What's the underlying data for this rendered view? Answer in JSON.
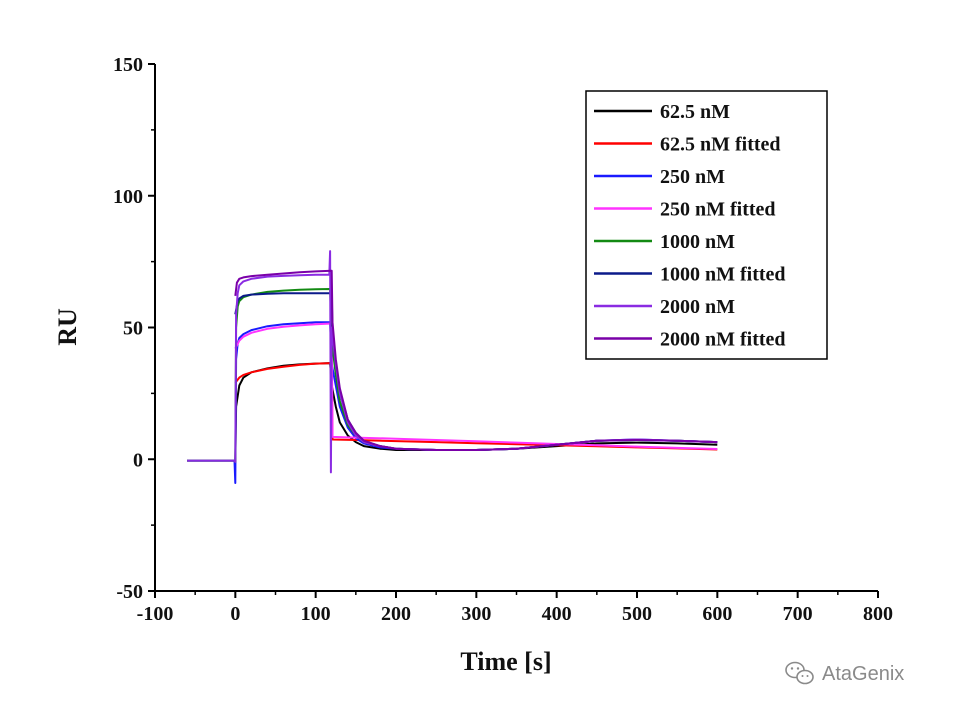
{
  "watermark": {
    "text": "AtaGenix",
    "icon": "wechat-icon",
    "color": "#8a8a8a"
  },
  "chart_data": {
    "type": "line",
    "title": "",
    "xlabel": "Time [s]",
    "ylabel": "RU",
    "xlim": [
      -100,
      800
    ],
    "ylim": [
      -50,
      150
    ],
    "x_ticks": [
      -100,
      0,
      100,
      200,
      300,
      400,
      500,
      600,
      700,
      800
    ],
    "y_ticks": [
      -50,
      0,
      50,
      100,
      150
    ],
    "grid": false,
    "legend_position": "top-right",
    "series": [
      {
        "name": "62.5 nM",
        "color": "#000000",
        "x": [
          -60,
          -1,
          0,
          1,
          5,
          10,
          20,
          40,
          60,
          80,
          100,
          118,
          120,
          125,
          130,
          140,
          150,
          160,
          180,
          200,
          250,
          300,
          350,
          400,
          450,
          500,
          550,
          600
        ],
        "y": [
          -0.5,
          -0.5,
          -1,
          20,
          28,
          31,
          33,
          34.5,
          35.5,
          36,
          36.3,
          36.5,
          28,
          20,
          14,
          9,
          6.5,
          5,
          4,
          3.5,
          3.5,
          3.5,
          4,
          5,
          6,
          6.3,
          6,
          5.5
        ]
      },
      {
        "name": "62.5 nM fitted",
        "color": "#ff0000",
        "x": [
          0,
          5,
          10,
          20,
          40,
          60,
          80,
          100,
          120,
          121,
          150,
          200,
          250,
          300,
          350,
          400,
          450,
          500,
          550,
          600
        ],
        "y": [
          29,
          31,
          32,
          33,
          34.3,
          35.1,
          35.8,
          36.3,
          36.5,
          7.5,
          7.3,
          6.9,
          6.5,
          6.1,
          5.7,
          5.3,
          4.9,
          4.5,
          4.1,
          3.7
        ]
      },
      {
        "name": "250 nM",
        "color": "#1a1aff",
        "x": [
          -60,
          -1,
          0,
          1,
          3,
          5,
          10,
          20,
          40,
          60,
          80,
          100,
          118,
          120,
          125,
          130,
          140,
          150,
          160,
          180,
          200,
          250,
          300,
          350,
          400,
          450,
          500,
          550,
          600
        ],
        "y": [
          -0.5,
          -0.5,
          -9,
          38,
          44,
          46,
          47.5,
          49,
          50.5,
          51.2,
          51.6,
          52,
          52,
          36,
          28,
          20,
          12,
          8,
          6,
          4.5,
          4,
          3.5,
          3.5,
          4,
          5.5,
          7,
          7.5,
          7,
          6.5
        ]
      },
      {
        "name": "250 nM fitted",
        "color": "#ff33ff",
        "x": [
          0,
          5,
          10,
          20,
          40,
          60,
          80,
          100,
          120,
          121,
          150,
          200,
          250,
          300,
          350,
          400,
          450,
          500,
          550,
          600
        ],
        "y": [
          42,
          45,
          46.5,
          48,
          49.5,
          50.3,
          50.8,
          51.2,
          51.5,
          8.5,
          8.2,
          7.8,
          7.3,
          6.8,
          6.3,
          5.8,
          5.3,
          4.8,
          4.3,
          3.9
        ]
      },
      {
        "name": "1000 nM",
        "color": "#138a13",
        "x": [
          -60,
          -1,
          0,
          1,
          3,
          5,
          10,
          20,
          40,
          60,
          80,
          100,
          118,
          120,
          125,
          130,
          140,
          150,
          160,
          180,
          200,
          250,
          300,
          350,
          400,
          450,
          500,
          550,
          600
        ],
        "y": [
          -0.5,
          -0.5,
          -1,
          50,
          58,
          60,
          61.5,
          62.5,
          63.5,
          64,
          64.3,
          64.5,
          64.6,
          45,
          32,
          22,
          13,
          9,
          6.5,
          5,
          4,
          3.5,
          3.5,
          4,
          5.5,
          7,
          7.3,
          7,
          6.5
        ]
      },
      {
        "name": "1000 nM fitted",
        "color": "#0b1a8a",
        "x": [
          0,
          3,
          5,
          10,
          20,
          40,
          60,
          80,
          100,
          120,
          121,
          125,
          130,
          140,
          150,
          160,
          180,
          200,
          250,
          300,
          350,
          400,
          450,
          500,
          550,
          600
        ],
        "y": [
          55,
          60,
          61,
          62,
          62.5,
          62.8,
          63,
          63,
          63,
          63,
          48,
          36,
          26,
          15,
          10,
          7,
          5,
          4,
          3.5,
          3.5,
          4,
          5.5,
          7,
          7.3,
          7,
          6.5
        ]
      },
      {
        "name": "2000 nM",
        "color": "#8a2be2",
        "x": [
          -60,
          -1,
          0,
          1,
          3,
          5,
          10,
          20,
          40,
          60,
          80,
          100,
          117,
          118,
          119,
          120,
          125,
          130,
          140,
          150,
          160,
          180,
          200,
          250,
          300,
          350,
          400,
          450,
          500,
          550,
          600
        ],
        "y": [
          -0.5,
          -0.5,
          -1,
          55,
          63,
          66,
          67.5,
          68.5,
          69.3,
          69.6,
          69.8,
          70,
          70,
          79,
          -5,
          50,
          36,
          25,
          14,
          9,
          6.5,
          5,
          4,
          3.5,
          3.5,
          4,
          5.5,
          7,
          7.5,
          7,
          6.5
        ]
      },
      {
        "name": "2000 nM fitted",
        "color": "#7a00a8",
        "x": [
          0,
          2,
          5,
          10,
          20,
          40,
          60,
          80,
          100,
          120,
          121,
          125,
          130,
          140,
          150,
          160,
          180,
          200,
          250,
          300,
          350,
          400,
          450,
          500,
          550,
          600
        ],
        "y": [
          62,
          67,
          68.5,
          69,
          69.5,
          70,
          70.5,
          71,
          71.3,
          71.5,
          52,
          38,
          27,
          15,
          10,
          7,
          5,
          4,
          3.5,
          3.5,
          4,
          5.5,
          7,
          7.3,
          7,
          6.5
        ]
      }
    ]
  }
}
